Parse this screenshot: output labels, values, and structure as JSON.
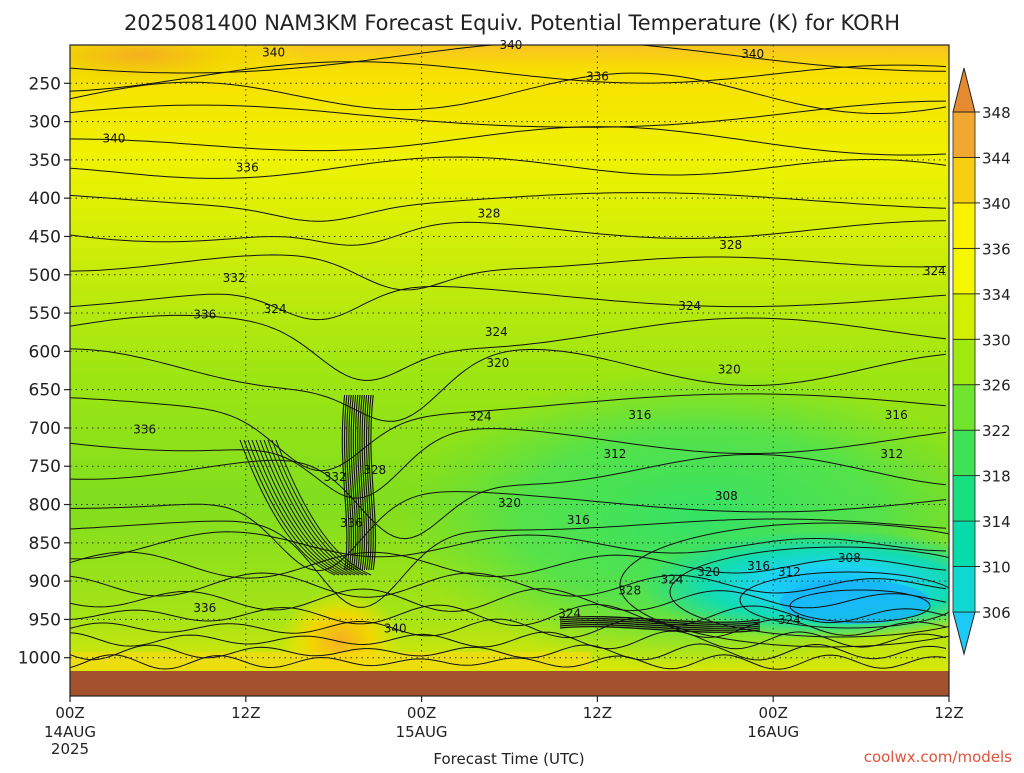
{
  "title": "2025081400 NAM3KM Forecast Equiv. Potential Temperature (K) for KORH",
  "credit": "coolwx.com/models",
  "chart_data": {
    "type": "heatmap",
    "title": "2025081400 NAM3KM Forecast Equiv. Potential Temperature (K) for KORH",
    "xlabel": "Forecast Time (UTC)",
    "ylabel": "",
    "x_range_hours": [
      0,
      60
    ],
    "y_range_hpa": [
      200,
      1050
    ],
    "x_ticks": [
      {
        "hour": 0,
        "label": "00Z",
        "sub": "14AUG",
        "sub2": "2025"
      },
      {
        "hour": 12,
        "label": "12Z",
        "sub": "",
        "sub2": ""
      },
      {
        "hour": 24,
        "label": "00Z",
        "sub": "15AUG",
        "sub2": ""
      },
      {
        "hour": 36,
        "label": "12Z",
        "sub": "",
        "sub2": ""
      },
      {
        "hour": 48,
        "label": "00Z",
        "sub": "16AUG",
        "sub2": ""
      },
      {
        "hour": 60,
        "label": "12Z",
        "sub": "",
        "sub2": ""
      }
    ],
    "y_ticks": [
      250,
      300,
      350,
      400,
      450,
      500,
      550,
      600,
      650,
      700,
      750,
      800,
      850,
      900,
      950,
      1000
    ],
    "colorbar": {
      "levels": [
        306,
        310,
        314,
        318,
        322,
        326,
        330,
        334,
        336,
        340,
        344,
        348
      ],
      "colors": [
        "#1fc9f5",
        "#10d8d0",
        "#06dcaa",
        "#18df80",
        "#3fe255",
        "#70e530",
        "#a0ea10",
        "#d0f000",
        "#f4f700",
        "#fbf200",
        "#f8cf10",
        "#f0a830",
        "#e68a30"
      ]
    },
    "contour_labels": [
      {
        "value": "340",
        "hour": 13.9,
        "hpa": 210
      },
      {
        "value": "340",
        "hour": 30.1,
        "hpa": 200
      },
      {
        "value": "340",
        "hour": 46.6,
        "hpa": 212
      },
      {
        "value": "336",
        "hour": 36.0,
        "hpa": 241
      },
      {
        "value": "340",
        "hour": 3.0,
        "hpa": 322
      },
      {
        "value": "336",
        "hour": 12.1,
        "hpa": 360
      },
      {
        "value": "328",
        "hour": 28.6,
        "hpa": 420
      },
      {
        "value": "328",
        "hour": 45.1,
        "hpa": 461
      },
      {
        "value": "332",
        "hour": 11.2,
        "hpa": 504
      },
      {
        "value": "336",
        "hour": 9.2,
        "hpa": 552
      },
      {
        "value": "324",
        "hour": 14.0,
        "hpa": 545
      },
      {
        "value": "324",
        "hour": 29.1,
        "hpa": 575
      },
      {
        "value": "324",
        "hour": 42.3,
        "hpa": 541
      },
      {
        "value": "324",
        "hour": 59.0,
        "hpa": 495
      },
      {
        "value": "320",
        "hour": 29.2,
        "hpa": 615
      },
      {
        "value": "320",
        "hour": 45.0,
        "hpa": 624
      },
      {
        "value": "336",
        "hour": 5.1,
        "hpa": 702
      },
      {
        "value": "324",
        "hour": 28.0,
        "hpa": 685
      },
      {
        "value": "316",
        "hour": 38.9,
        "hpa": 683
      },
      {
        "value": "316",
        "hour": 56.4,
        "hpa": 683
      },
      {
        "value": "312",
        "hour": 37.2,
        "hpa": 734
      },
      {
        "value": "312",
        "hour": 56.1,
        "hpa": 734
      },
      {
        "value": "332",
        "hour": 18.1,
        "hpa": 764
      },
      {
        "value": "328",
        "hour": 20.8,
        "hpa": 755
      },
      {
        "value": "308",
        "hour": 44.8,
        "hpa": 789
      },
      {
        "value": "320",
        "hour": 30.0,
        "hpa": 798
      },
      {
        "value": "316",
        "hour": 34.7,
        "hpa": 820
      },
      {
        "value": "336",
        "hour": 19.2,
        "hpa": 824
      },
      {
        "value": "308",
        "hour": 53.2,
        "hpa": 870
      },
      {
        "value": "316",
        "hour": 47.0,
        "hpa": 880
      },
      {
        "value": "312",
        "hour": 49.1,
        "hpa": 888
      },
      {
        "value": "320",
        "hour": 43.6,
        "hpa": 888
      },
      {
        "value": "324",
        "hour": 41.1,
        "hpa": 898
      },
      {
        "value": "328",
        "hour": 38.2,
        "hpa": 912
      },
      {
        "value": "324",
        "hour": 34.1,
        "hpa": 942
      },
      {
        "value": "336",
        "hour": 9.2,
        "hpa": 935
      },
      {
        "value": "340",
        "hour": 22.2,
        "hpa": 962
      },
      {
        "value": "324",
        "hour": 49.1,
        "hpa": 951
      }
    ]
  }
}
